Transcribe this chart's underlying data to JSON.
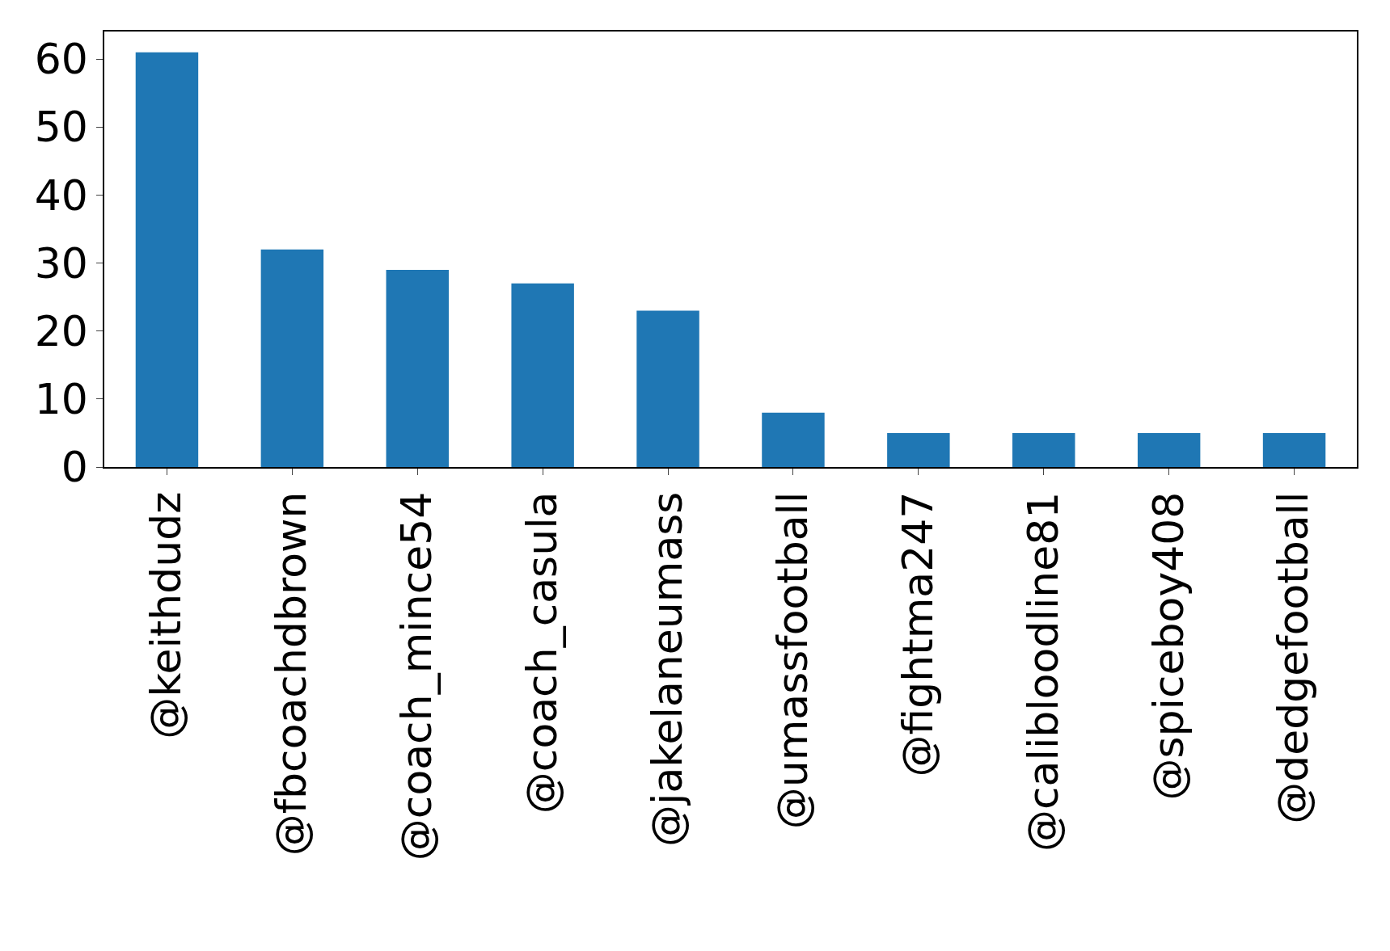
{
  "chart_data": {
    "type": "bar",
    "categories": [
      "@keithdudz",
      "@fbcoachdbrown",
      "@coach_mince54",
      "@coach_casula",
      "@jakelaneumass",
      "@umassfootball",
      "@fightma247",
      "@calibloodline81",
      "@spiceboy408",
      "@dedgefootball"
    ],
    "values": [
      61,
      32,
      29,
      27,
      23,
      8,
      5,
      5,
      5,
      5
    ],
    "color": "#1f77b4",
    "ylim": [
      0,
      64.05
    ],
    "yticks": [
      0,
      10,
      20,
      30,
      40,
      50,
      60
    ]
  }
}
